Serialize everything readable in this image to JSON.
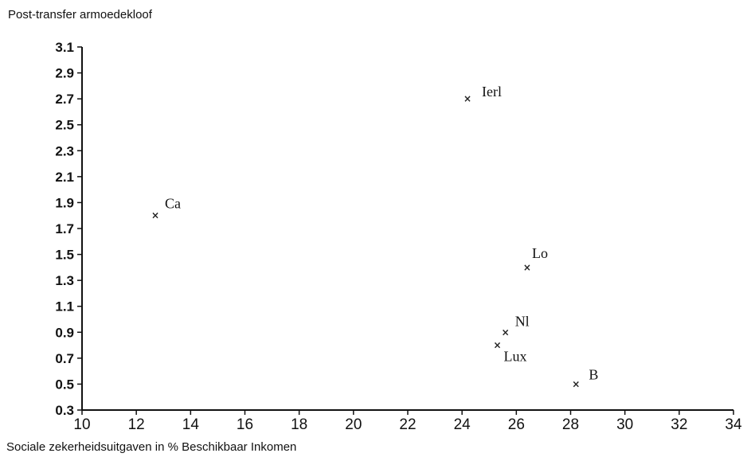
{
  "chart_data": {
    "type": "scatter",
    "title": "",
    "xlabel": "Sociale zekerheidsuitgaven in % Beschikbaar Inkomen",
    "ylabel": "Post-transfer armoedekloof",
    "xlim": [
      10,
      34
    ],
    "ylim": [
      0.3,
      3.1
    ],
    "x_ticks": [
      "10",
      "12",
      "14",
      "16",
      "18",
      "20",
      "22",
      "24",
      "26",
      "28",
      "30",
      "32",
      "34"
    ],
    "y_ticks": [
      "0.3",
      "0.5",
      "0.7",
      "0.9",
      "1.1",
      "1.3",
      "1.5",
      "1.7",
      "1.9",
      "2.1",
      "2.3",
      "2.5",
      "2.7",
      "2.9",
      "3.1"
    ],
    "x_tick_values": [
      10,
      12,
      14,
      16,
      18,
      20,
      22,
      24,
      26,
      28,
      30,
      32,
      34
    ],
    "y_tick_values": [
      0.3,
      0.5,
      0.7,
      0.9,
      1.1,
      1.3,
      1.5,
      1.7,
      1.9,
      2.1,
      2.3,
      2.5,
      2.7,
      2.9,
      3.1
    ],
    "grid": false,
    "legend": "none",
    "points": [
      {
        "label": "Ierl",
        "x": 24.2,
        "y": 2.7
      },
      {
        "label": "Ca",
        "x": 12.7,
        "y": 1.8
      },
      {
        "label": "Lo",
        "x": 26.4,
        "y": 1.4
      },
      {
        "label": "Nl",
        "x": 25.6,
        "y": 0.9
      },
      {
        "label": "Lux",
        "x": 25.3,
        "y": 0.8
      },
      {
        "label": "B",
        "x": 28.2,
        "y": 0.5
      }
    ],
    "marker_color": "#222222",
    "axis_color": "#111111"
  }
}
